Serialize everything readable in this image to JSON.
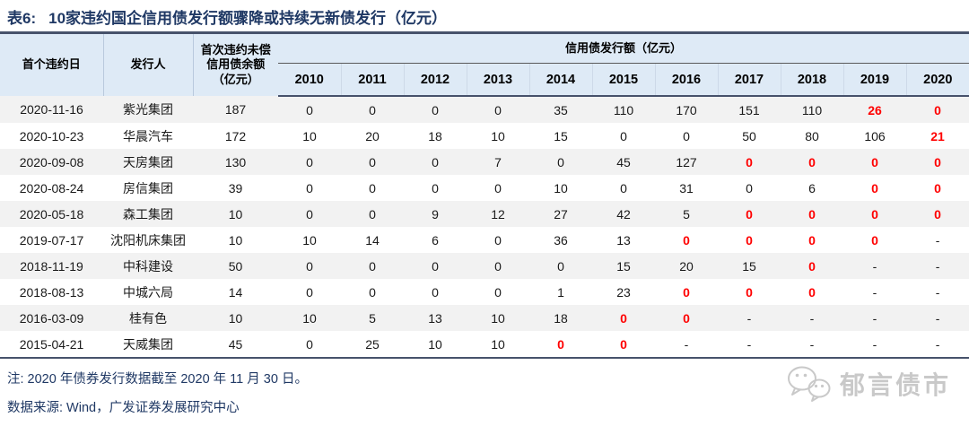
{
  "table": {
    "tag": "表6:",
    "title": "10家违约国企信用债发行额骤降或持续无新债发行（亿元）",
    "headers": {
      "default_date": "首个违约日",
      "issuer": "发行人",
      "balance": "首次违约未偿信用债余额（亿元）",
      "issuance_group": "信用债发行额（亿元）",
      "years": [
        "2010",
        "2011",
        "2012",
        "2013",
        "2014",
        "2015",
        "2016",
        "2017",
        "2018",
        "2019",
        "2020"
      ]
    },
    "rows": [
      {
        "date": "2020-11-16",
        "issuer": "紫光集团",
        "balance": "187",
        "values": [
          "0",
          "0",
          "0",
          "0",
          "35",
          "110",
          "170",
          "151",
          "110",
          "26",
          "0"
        ],
        "red": [
          0,
          0,
          0,
          0,
          0,
          0,
          0,
          0,
          0,
          1,
          1
        ]
      },
      {
        "date": "2020-10-23",
        "issuer": "华晨汽车",
        "balance": "172",
        "values": [
          "10",
          "20",
          "18",
          "10",
          "15",
          "0",
          "0",
          "50",
          "80",
          "106",
          "21"
        ],
        "red": [
          0,
          0,
          0,
          0,
          0,
          0,
          0,
          0,
          0,
          0,
          1
        ]
      },
      {
        "date": "2020-09-08",
        "issuer": "天房集团",
        "balance": "130",
        "values": [
          "0",
          "0",
          "0",
          "7",
          "0",
          "45",
          "127",
          "0",
          "0",
          "0",
          "0"
        ],
        "red": [
          0,
          0,
          0,
          0,
          0,
          0,
          0,
          1,
          1,
          1,
          1
        ]
      },
      {
        "date": "2020-08-24",
        "issuer": "房信集团",
        "balance": "39",
        "values": [
          "0",
          "0",
          "0",
          "0",
          "10",
          "0",
          "31",
          "0",
          "6",
          "0",
          "0"
        ],
        "red": [
          0,
          0,
          0,
          0,
          0,
          0,
          0,
          0,
          0,
          1,
          1
        ]
      },
      {
        "date": "2020-05-18",
        "issuer": "森工集团",
        "balance": "10",
        "values": [
          "0",
          "0",
          "9",
          "12",
          "27",
          "42",
          "5",
          "0",
          "0",
          "0",
          "0"
        ],
        "red": [
          0,
          0,
          0,
          0,
          0,
          0,
          0,
          1,
          1,
          1,
          1
        ]
      },
      {
        "date": "2019-07-17",
        "issuer": "沈阳机床集团",
        "balance": "10",
        "values": [
          "10",
          "14",
          "6",
          "0",
          "36",
          "13",
          "0",
          "0",
          "0",
          "0",
          "-"
        ],
        "red": [
          0,
          0,
          0,
          0,
          0,
          0,
          1,
          1,
          1,
          1,
          0
        ]
      },
      {
        "date": "2018-11-19",
        "issuer": "中科建设",
        "balance": "50",
        "values": [
          "0",
          "0",
          "0",
          "0",
          "0",
          "15",
          "20",
          "15",
          "0",
          "-",
          "-"
        ],
        "red": [
          0,
          0,
          0,
          0,
          0,
          0,
          0,
          0,
          1,
          0,
          0
        ]
      },
      {
        "date": "2018-08-13",
        "issuer": "中城六局",
        "balance": "14",
        "values": [
          "0",
          "0",
          "0",
          "0",
          "1",
          "23",
          "0",
          "0",
          "0",
          "-",
          "-"
        ],
        "red": [
          0,
          0,
          0,
          0,
          0,
          0,
          1,
          1,
          1,
          0,
          0
        ]
      },
      {
        "date": "2016-03-09",
        "issuer": "桂有色",
        "balance": "10",
        "values": [
          "10",
          "5",
          "13",
          "10",
          "18",
          "0",
          "0",
          "-",
          "-",
          "-",
          "-"
        ],
        "red": [
          0,
          0,
          0,
          0,
          0,
          1,
          1,
          0,
          0,
          0,
          0
        ]
      },
      {
        "date": "2015-04-21",
        "issuer": "天威集团",
        "balance": "45",
        "values": [
          "0",
          "25",
          "10",
          "10",
          "0",
          "0",
          "-",
          "-",
          "-",
          "-",
          "-"
        ],
        "red": [
          0,
          0,
          0,
          0,
          1,
          1,
          0,
          0,
          0,
          0,
          0
        ]
      }
    ]
  },
  "note": "注: 2020 年债券发行数据截至 2020 年 11 月 30 日。",
  "source": "数据来源: Wind，广发证券发展研究中心",
  "watermark": "郁言债市",
  "icons": {
    "brand": "wechat-bubbles-icon"
  },
  "colors": {
    "title_text": "#1f3864",
    "header_bg": "#deeaf6",
    "rule_dark": "#47526b",
    "row_alt": "#f2f2f2",
    "negative_red": "#ff0000",
    "watermark_gray": "#c9c9c9"
  }
}
